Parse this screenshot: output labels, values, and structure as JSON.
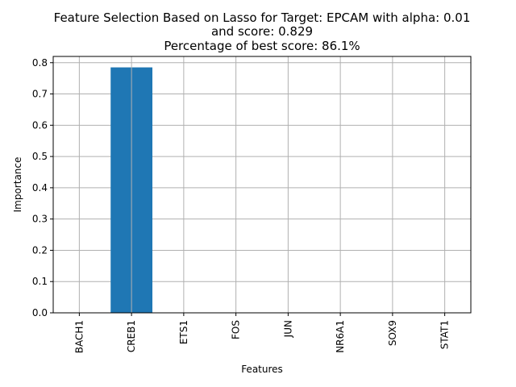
{
  "chart_data": {
    "type": "bar",
    "title_lines": [
      "Feature Selection Based on Lasso for Target: EPCAM with alpha: 0.01",
      "and score: 0.829",
      "Percentage of best score: 86.1%"
    ],
    "xlabel": "Features",
    "ylabel": "Importance",
    "categories": [
      "BACH1",
      "CREB1",
      "ETS1",
      "FOS",
      "JUN",
      "NR6A1",
      "SOX9",
      "STAT1"
    ],
    "values": [
      0.0,
      0.785,
      0.0,
      0.0,
      0.0,
      0.0,
      0.0,
      0.0
    ],
    "ylim": [
      0,
      0.82
    ],
    "yticks": [
      "0.0",
      "0.1",
      "0.2",
      "0.3",
      "0.4",
      "0.5",
      "0.6",
      "0.7",
      "0.8"
    ],
    "grid": true,
    "bar_color": "#1f77b4",
    "grid_color": "#b0b0b0"
  }
}
